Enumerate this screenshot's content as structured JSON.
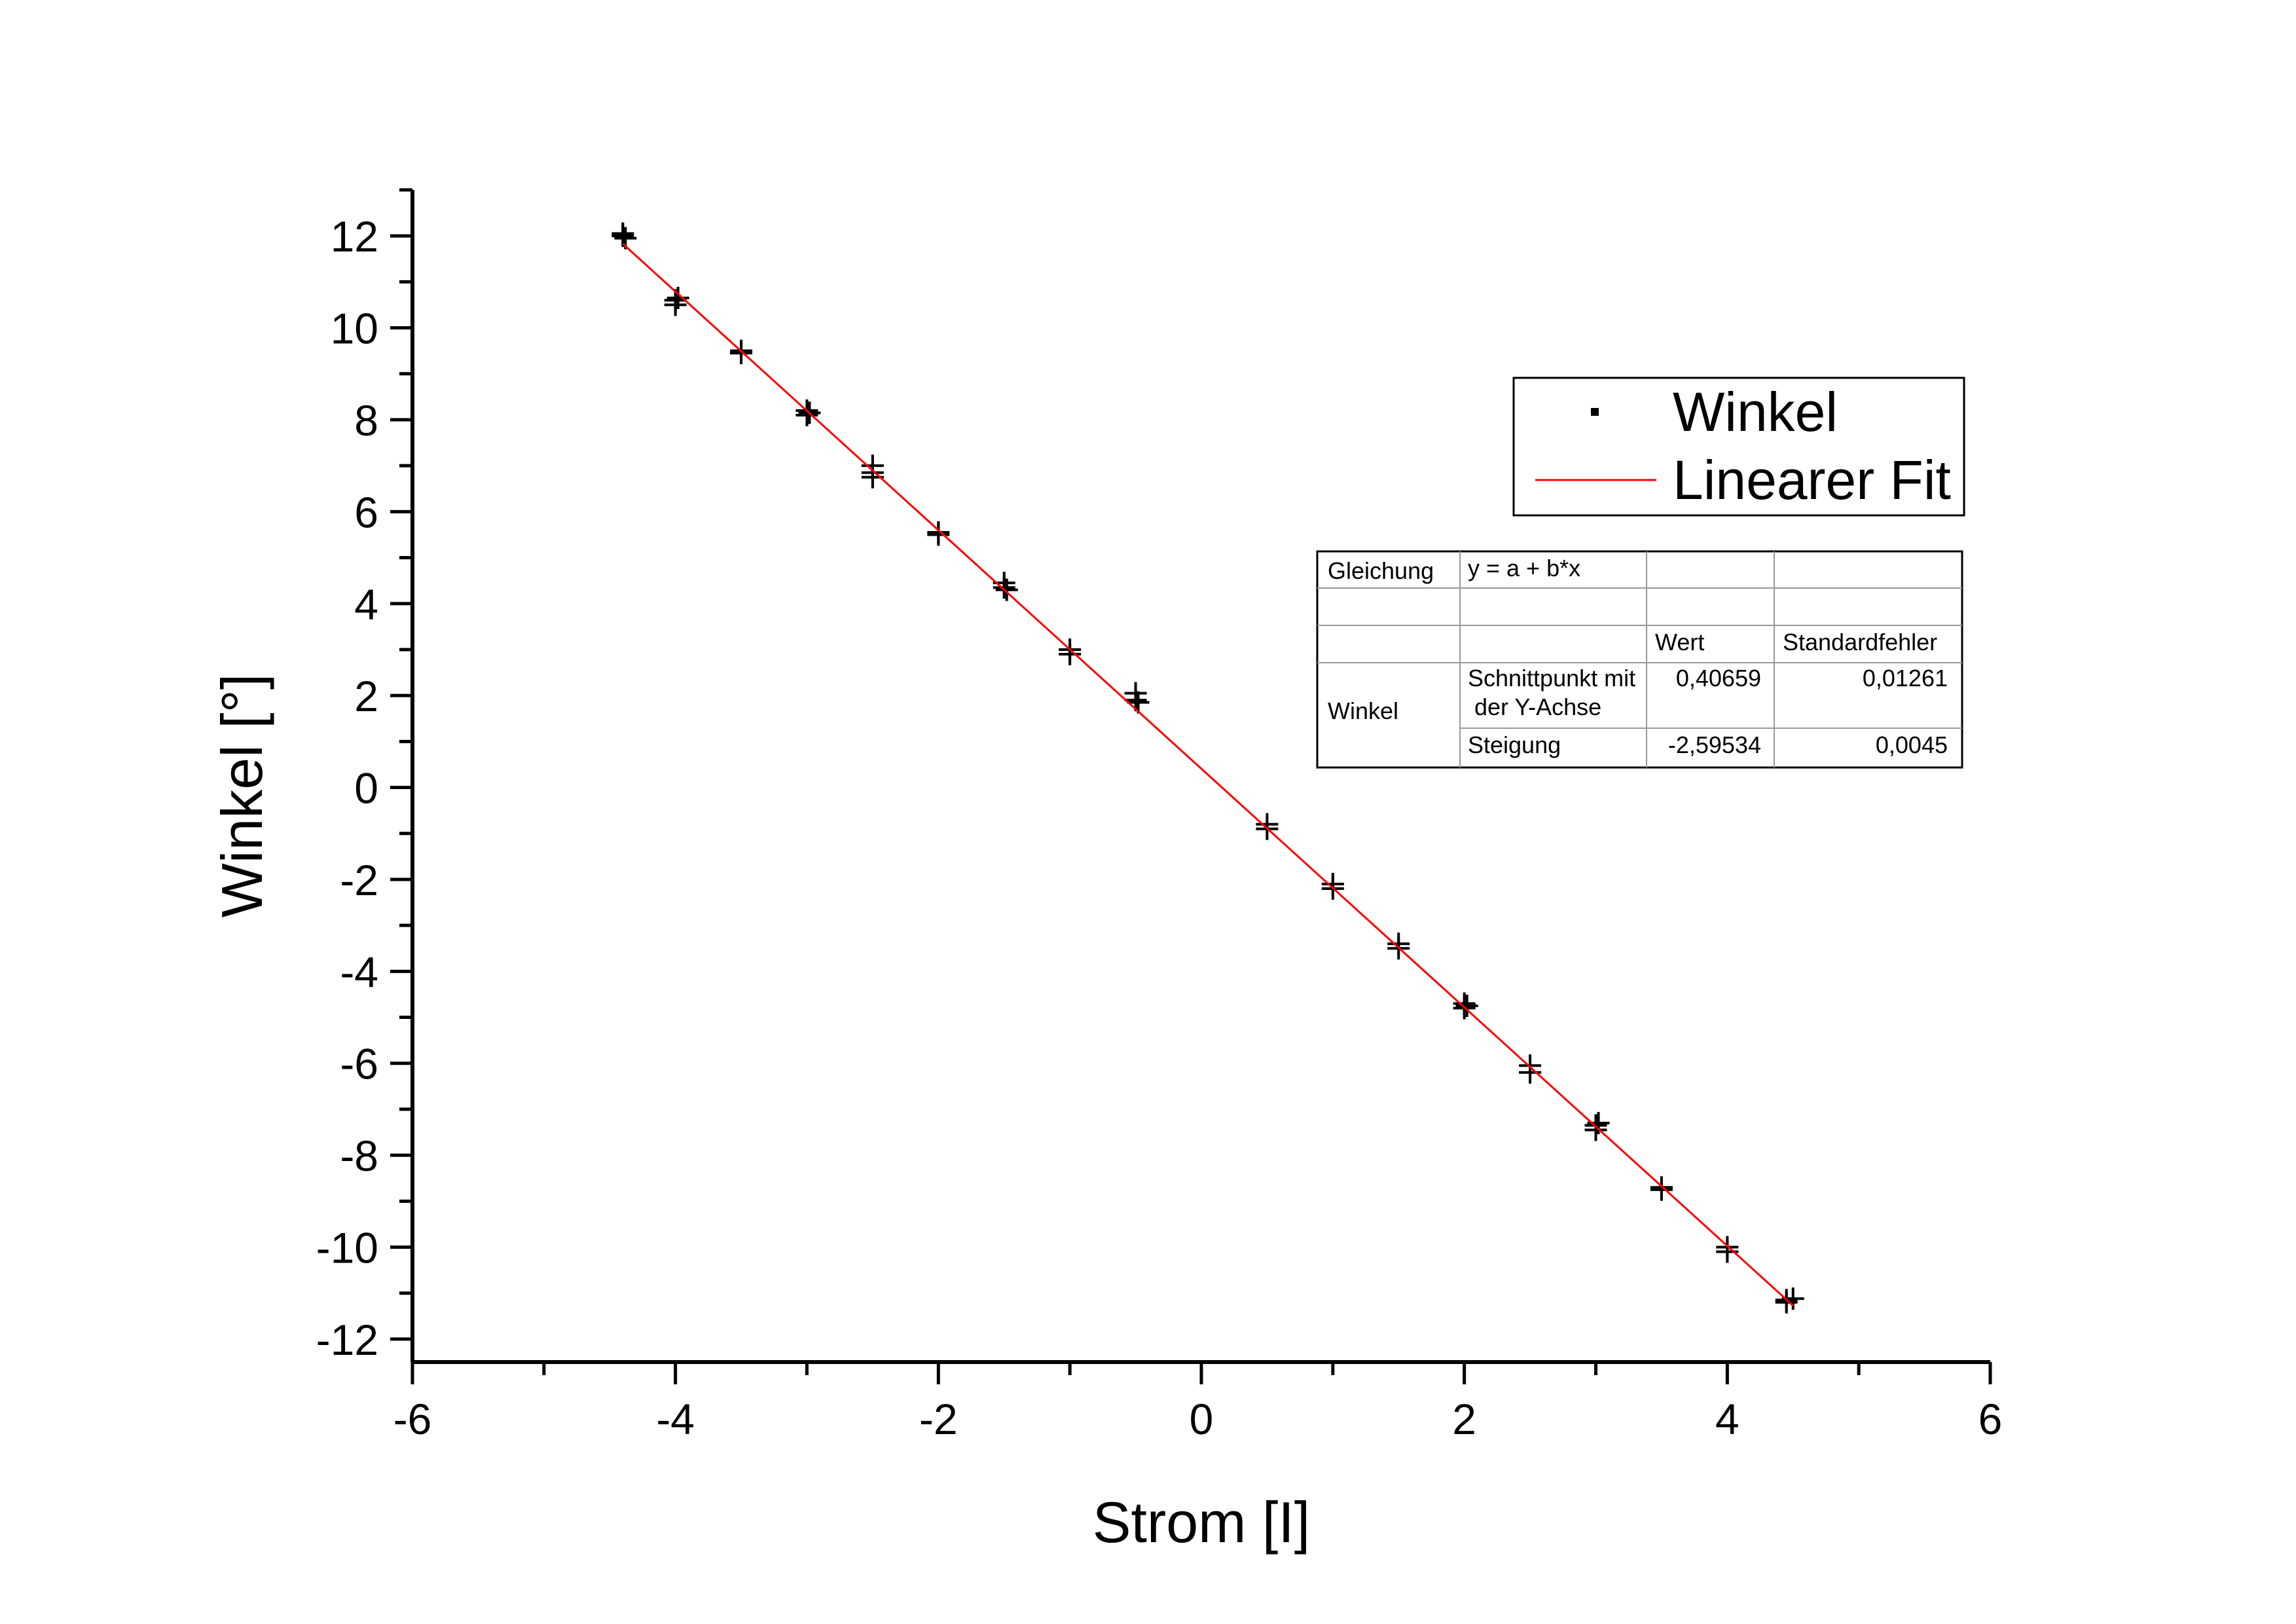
{
  "chart_data": {
    "type": "scatter",
    "title": "",
    "xlabel": "Strom [I]",
    "ylabel": "Winkel [°]",
    "xlim": [
      -6,
      6
    ],
    "ylim": [
      -12.5,
      13
    ],
    "x_ticks": [
      -6,
      -4,
      -2,
      0,
      2,
      4,
      6
    ],
    "x_tick_labels": [
      "-6",
      "-4",
      "-2",
      "0",
      "2",
      "4",
      "6"
    ],
    "y_ticks": [
      -12,
      -10,
      -8,
      -6,
      -4,
      -2,
      0,
      2,
      4,
      6,
      8,
      10,
      12
    ],
    "y_tick_labels": [
      "-12",
      "-10",
      "-8",
      "-6",
      "-4",
      "-2",
      "0",
      "2",
      "4",
      "6",
      "8",
      "10",
      "12"
    ],
    "legend_position": "top-right",
    "grid": false,
    "series": [
      {
        "name": "Winkel",
        "kind": "points",
        "color": "#000000",
        "marker": "cross",
        "x": [
          -4.4,
          -4.4,
          -4.38,
          -4.0,
          -4.0,
          -3.98,
          -3.5,
          -3.5,
          -3.0,
          -3.0,
          -2.98,
          -2.5,
          -2.5,
          -2.5,
          -2.0,
          -2.0,
          -1.5,
          -1.5,
          -1.48,
          -1.0,
          -1.0,
          -0.5,
          -0.5,
          -0.48,
          0.5,
          0.5,
          1.0,
          1.0,
          1.5,
          1.5,
          2.0,
          2.0,
          2.02,
          2.5,
          2.5,
          3.0,
          3.0,
          3.02,
          3.5,
          3.5,
          4.0,
          4.0,
          4.45,
          4.45,
          4.5
        ],
        "y": [
          12.0,
          12.05,
          11.95,
          10.6,
          10.5,
          10.65,
          9.5,
          9.45,
          8.2,
          8.1,
          8.15,
          6.85,
          7.0,
          6.75,
          5.5,
          5.55,
          4.35,
          4.45,
          4.3,
          2.9,
          3.0,
          1.9,
          2.05,
          1.85,
          -0.8,
          -0.9,
          -2.1,
          -2.2,
          -3.4,
          -3.5,
          -4.7,
          -4.8,
          -4.75,
          -6.05,
          -6.2,
          -7.35,
          -7.45,
          -7.3,
          -8.7,
          -8.75,
          -10.0,
          -10.1,
          -11.15,
          -11.2,
          -11.12
        ]
      },
      {
        "name": "Linearer Fit",
        "kind": "line",
        "color": "#ff0000",
        "x": [
          -4.4,
          4.5
        ],
        "y": [
          11.82609,
          -11.27244
        ]
      }
    ],
    "table": {
      "rows": [
        [
          "Gleichung",
          "y = a + b*x",
          "",
          ""
        ],
        [
          "",
          "",
          "",
          ""
        ],
        [
          "",
          "",
          "Wert",
          "Standardfehler"
        ],
        [
          "Winkel",
          "Schnittpunkt mit\n der Y-Achse",
          "0,40659",
          "0,01261"
        ],
        [
          "",
          "Steigung",
          "-2,59534",
          "0,0045"
        ]
      ]
    }
  }
}
